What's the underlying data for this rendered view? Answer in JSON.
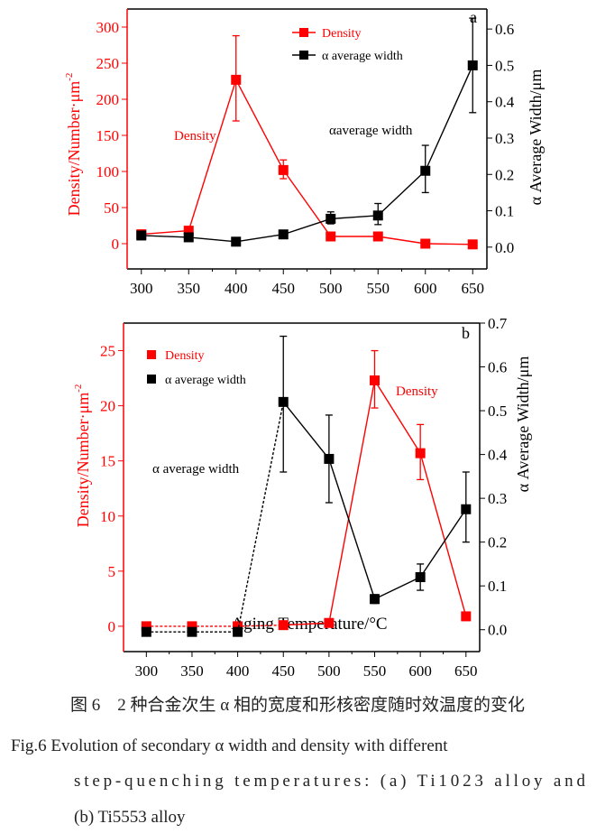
{
  "colors": {
    "density": "#ff0000",
    "width": "#000000"
  },
  "chart_data": [
    {
      "type": "line",
      "panel_label": "a",
      "x": [
        300,
        350,
        400,
        450,
        500,
        550,
        600,
        650
      ],
      "xlim": [
        285,
        665
      ],
      "xticks": [
        "300",
        "350",
        "400",
        "450",
        "500",
        "550",
        "600",
        "650"
      ],
      "xlabel": "",
      "ylabel_left": "Density/Number·μm",
      "ylabel_left_sup": "-2",
      "ylim_left": [
        -35,
        325
      ],
      "yticks_left": [
        "0",
        "50",
        "100",
        "150",
        "200",
        "250",
        "300"
      ],
      "ylabel_right": "α Average Width/μm",
      "ylim_right": [
        -0.06,
        0.655
      ],
      "yticks_right": [
        "0.0",
        "0.1",
        "0.2",
        "0.3",
        "0.4",
        "0.5",
        "0.6"
      ],
      "legend": {
        "placement": "top-center",
        "style": "line-marker"
      },
      "series": [
        {
          "name": "Density",
          "axis": "left",
          "color": "#ff0000",
          "values": [
            13,
            18,
            227,
            102,
            10,
            10,
            0,
            -1
          ],
          "err_low": [
            null,
            null,
            170,
            90,
            null,
            null,
            null,
            null
          ],
          "err_high": [
            null,
            null,
            288,
            116,
            null,
            null,
            null,
            null
          ],
          "dashed_until": null
        },
        {
          "name": "α average width",
          "axis": "right",
          "color": "#000000",
          "values": [
            0.032,
            0.027,
            0.015,
            0.035,
            0.078,
            0.087,
            0.21,
            0.5
          ],
          "err_low": [
            null,
            null,
            null,
            0.026,
            0.064,
            0.062,
            0.15,
            0.37
          ],
          "err_high": [
            null,
            null,
            null,
            0.045,
            0.097,
            0.12,
            0.28,
            0.63
          ],
          "dashed_until": null
        }
      ],
      "annotations": [
        {
          "text": "Density",
          "color": "#ff0000"
        },
        {
          "text": "αaverage width",
          "color": "#000000"
        }
      ]
    },
    {
      "type": "line",
      "panel_label": "b",
      "x": [
        300,
        350,
        400,
        450,
        500,
        550,
        600,
        650
      ],
      "xlim": [
        275,
        665
      ],
      "xticks": [
        "300",
        "350",
        "400",
        "450",
        "500",
        "550",
        "600",
        "650"
      ],
      "xlabel": "Aging Temperature/°C",
      "ylabel_left": "Density/Number·μm",
      "ylabel_left_sup": "-2",
      "ylim_left": [
        -2.3,
        27.5
      ],
      "yticks_left": [
        "0",
        "5",
        "10",
        "15",
        "20",
        "25"
      ],
      "ylabel_right": "α Average Width/μm",
      "ylim_right": [
        -0.05,
        0.7
      ],
      "yticks_right": [
        "0.0",
        "0.1",
        "0.2",
        "0.3",
        "0.4",
        "0.5",
        "0.6",
        "0.7"
      ],
      "legend": {
        "placement": "top-left",
        "style": "marker-only"
      },
      "series": [
        {
          "name": "Density",
          "axis": "left",
          "color": "#ff0000",
          "values": [
            0,
            0,
            0,
            0.1,
            0.3,
            22.3,
            15.7,
            0.9
          ],
          "err_low": [
            null,
            null,
            null,
            null,
            null,
            19.8,
            13.3,
            null
          ],
          "err_high": [
            null,
            null,
            null,
            null,
            null,
            25.0,
            18.3,
            null
          ],
          "dashed_until": 450
        },
        {
          "name": "α average width",
          "axis": "right",
          "color": "#000000",
          "values": [
            -0.005,
            -0.005,
            -0.005,
            0.52,
            0.39,
            0.07,
            0.12,
            0.275
          ],
          "err_low": [
            null,
            null,
            null,
            0.36,
            0.29,
            0.06,
            0.09,
            0.2
          ],
          "err_high": [
            null,
            null,
            null,
            0.67,
            0.49,
            0.08,
            0.15,
            0.36
          ],
          "dashed_until": 450
        }
      ],
      "annotations": [
        {
          "text": "α average width",
          "color": "#000000"
        },
        {
          "text": "Density",
          "color": "#ff0000"
        }
      ]
    }
  ],
  "caption": {
    "zh": "图 6　2 种合金次生 α 相的宽度和形核密度随时效温度的变化",
    "en_line1": "Fig.6   Evolution of secondary α width and density with different",
    "en_line2": "step-quenching  temperatures:  (a)  Ti1023  alloy  and",
    "en_line3": "(b) Ti5553 alloy"
  }
}
